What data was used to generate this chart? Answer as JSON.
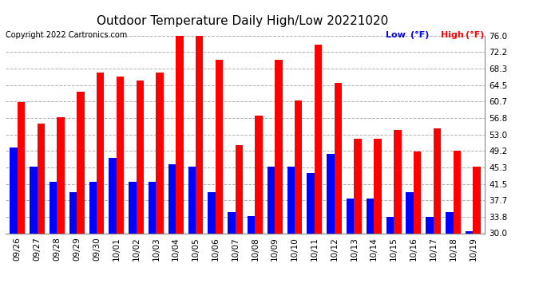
{
  "title": "Outdoor Temperature Daily High/Low 20221020",
  "copyright": "Copyright 2022 Cartronics.com",
  "legend_low": "Low",
  "legend_high": "High",
  "legend_unit": "(°F)",
  "dates": [
    "09/26",
    "09/27",
    "09/28",
    "09/29",
    "09/30",
    "10/01",
    "10/02",
    "10/03",
    "10/04",
    "10/05",
    "10/06",
    "10/07",
    "10/08",
    "10/09",
    "10/10",
    "10/11",
    "10/12",
    "10/13",
    "10/14",
    "10/15",
    "10/16",
    "10/17",
    "10/18",
    "10/19"
  ],
  "highs": [
    60.5,
    55.5,
    57.0,
    63.0,
    67.5,
    66.5,
    65.5,
    67.5,
    76.0,
    76.0,
    70.5,
    50.5,
    57.5,
    70.5,
    61.0,
    74.0,
    65.0,
    52.0,
    52.0,
    54.0,
    49.0,
    54.5,
    49.2,
    45.5
  ],
  "lows": [
    50.0,
    45.5,
    42.0,
    39.5,
    42.0,
    47.5,
    42.0,
    42.0,
    46.0,
    45.5,
    39.5,
    35.0,
    34.0,
    45.5,
    45.5,
    44.0,
    48.5,
    38.0,
    38.0,
    33.8,
    39.5,
    33.8,
    35.0,
    30.5
  ],
  "bar_color_high": "#ff0000",
  "bar_color_low": "#0000ff",
  "bg_color": "#ffffff",
  "grid_color": "#b0b0b0",
  "title_color": "#000000",
  "copyright_color": "#000000",
  "low_label_color": "#0000ff",
  "high_label_color": "#ff0000",
  "ylim_min": 30.0,
  "ylim_max": 76.0,
  "yticks": [
    30.0,
    33.8,
    37.7,
    41.5,
    45.3,
    49.2,
    53.0,
    56.8,
    60.7,
    64.5,
    68.3,
    72.2,
    76.0
  ],
  "title_fontsize": 11,
  "copyright_fontsize": 7,
  "tick_fontsize": 7.5,
  "legend_fontsize": 8,
  "bar_width": 0.38
}
